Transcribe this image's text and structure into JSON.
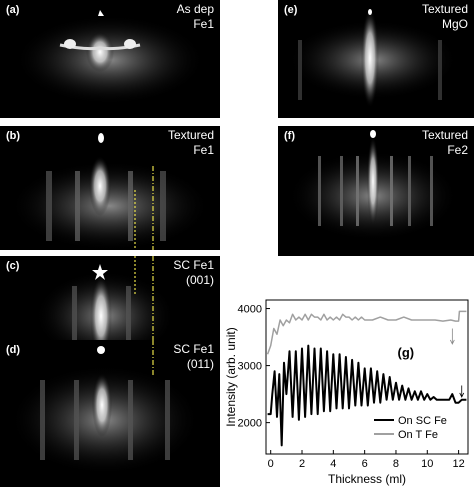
{
  "panels": [
    {
      "id": "a",
      "label": "(a)",
      "lines": [
        "As dep",
        "Fe1"
      ]
    },
    {
      "id": "b",
      "label": "(b)",
      "lines": [
        "Textured",
        "Fe1"
      ]
    },
    {
      "id": "c",
      "label": "(c)",
      "lines": [
        "SC Fe1",
        "(001)"
      ]
    },
    {
      "id": "d",
      "label": "(d)",
      "lines": [
        "SC Fe1",
        "(011)"
      ]
    },
    {
      "id": "e",
      "label": "(e)",
      "lines": [
        "Textured",
        "MgO"
      ]
    },
    {
      "id": "f",
      "label": "(f)",
      "lines": [
        "Textured",
        "Fe2"
      ]
    }
  ],
  "chart_data": {
    "type": "line",
    "panel_label": "(g)",
    "xlabel": "Thickness (ml)",
    "ylabel": "Intensity (arb. unit)",
    "xlim": [
      -0.3,
      12.6
    ],
    "ylim": [
      1450,
      4150
    ],
    "xticks": [
      0,
      2,
      4,
      6,
      8,
      10,
      12
    ],
    "yticks": [
      2000,
      3000,
      4000
    ],
    "legend_position": "bottom-right",
    "series": [
      {
        "name": "On SC Fe",
        "color": "#000000",
        "x": [
          -0.2,
          0.0,
          0.1,
          0.25,
          0.4,
          0.55,
          0.7,
          0.85,
          1.0,
          1.2,
          1.4,
          1.6,
          1.8,
          2.0,
          2.2,
          2.4,
          2.6,
          2.8,
          3.0,
          3.2,
          3.4,
          3.6,
          3.8,
          4.0,
          4.2,
          4.4,
          4.6,
          4.8,
          5.0,
          5.2,
          5.4,
          5.6,
          5.8,
          6.0,
          6.2,
          6.4,
          6.6,
          6.8,
          7.0,
          7.2,
          7.4,
          7.6,
          7.8,
          8.0,
          8.2,
          8.4,
          8.6,
          8.8,
          9.0,
          9.2,
          9.4,
          9.6,
          9.8,
          10.0,
          10.2,
          10.4,
          10.6,
          10.8,
          11.0,
          11.2,
          11.4,
          11.6,
          11.8,
          12.0,
          12.2,
          12.5
        ],
        "y": [
          2150,
          2150,
          2500,
          2900,
          2100,
          2850,
          1600,
          3050,
          2500,
          3250,
          2100,
          3250,
          2050,
          3300,
          2100,
          3350,
          2150,
          3300,
          2150,
          3300,
          2200,
          3250,
          2200,
          3200,
          2250,
          3200,
          2250,
          3150,
          2250,
          3100,
          2300,
          3050,
          2300,
          2950,
          2300,
          2950,
          2350,
          2900,
          2350,
          2850,
          2400,
          2800,
          2400,
          2700,
          2400,
          2650,
          2400,
          2600,
          2400,
          2550,
          2400,
          2550,
          2400,
          2500,
          2400,
          2450,
          2400,
          2400,
          2400,
          2400,
          2400,
          2500,
          2350,
          2350,
          2400,
          2400
        ]
      },
      {
        "name": "On T Fe",
        "color": "#a0a0a0",
        "x": [
          -0.2,
          0.0,
          0.2,
          0.4,
          0.6,
          0.8,
          1.0,
          1.2,
          1.4,
          1.6,
          1.8,
          2.0,
          2.2,
          2.4,
          2.6,
          2.8,
          3.0,
          3.2,
          3.4,
          3.6,
          3.8,
          4.0,
          4.2,
          4.4,
          4.6,
          4.8,
          5.0,
          5.2,
          5.4,
          5.6,
          5.8,
          6.0,
          6.5,
          7.0,
          7.5,
          8.0,
          8.5,
          9.0,
          9.5,
          10.0,
          10.5,
          11.0,
          11.5,
          11.8,
          12.0,
          12.05,
          12.2,
          12.5
        ],
        "y": [
          3200,
          3350,
          3650,
          3550,
          3800,
          3700,
          3800,
          3750,
          3900,
          3800,
          3850,
          3800,
          3900,
          3800,
          3900,
          3850,
          3850,
          3800,
          3900,
          3800,
          3850,
          3800,
          3850,
          3800,
          3900,
          3850,
          3850,
          3800,
          3850,
          3800,
          3850,
          3800,
          3800,
          3850,
          3800,
          3800,
          3850,
          3800,
          3800,
          3800,
          3800,
          3780,
          3800,
          3780,
          3780,
          3950,
          3950,
          3950
        ]
      }
    ]
  }
}
